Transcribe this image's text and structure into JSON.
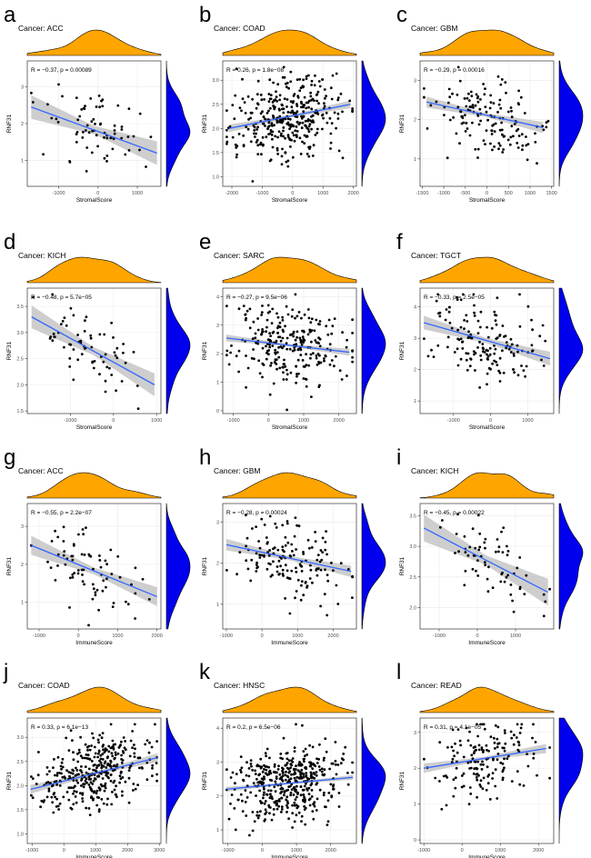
{
  "chart_data": [
    {
      "type": "scatter",
      "letter": "a",
      "title": "Cancer: ACC",
      "xlabel": "StromalScore",
      "ylabel": "RNF31",
      "annotation": "R = −0.37, p = 0.00089",
      "xlim": [
        -1800,
        1600
      ],
      "ylim": [
        0.3,
        3.7
      ],
      "xticks": [
        -1000,
        0,
        1000
      ],
      "xticklabels": [
        "-1000",
        "0",
        "1000"
      ],
      "yticks": [
        1,
        2,
        3
      ],
      "yticklabels": [
        "1",
        "2",
        "3"
      ],
      "fit": {
        "x": [
          -1700,
          1500
        ],
        "y": [
          2.45,
          1.2
        ],
        "ci": 0.32
      },
      "n_points": 72,
      "seed": 11
    },
    {
      "type": "scatter",
      "letter": "b",
      "title": "Cancer: COAD",
      "xlabel": "StromalScore",
      "ylabel": "RNF31",
      "annotation": "R = 0.26, p = 1.8e−08",
      "xlim": [
        -2300,
        2100
      ],
      "ylim": [
        0.8,
        3.4
      ],
      "xticks": [
        -2000,
        -1000,
        0,
        1000,
        2000
      ],
      "xticklabels": [
        "-2000",
        "-1000",
        "0",
        "1000",
        "2000"
      ],
      "yticks": [
        1.0,
        1.5,
        2.0,
        2.5,
        3.0
      ],
      "yticklabels": [
        "1.0",
        "1.5",
        "2.0",
        "2.5",
        "3.0"
      ],
      "fit": {
        "x": [
          -2100,
          1900
        ],
        "y": [
          2.0,
          2.5
        ],
        "ci": 0.08
      },
      "n_points": 360,
      "seed": 12
    },
    {
      "type": "scatter",
      "letter": "c",
      "title": "Cancer: GBM",
      "xlabel": "StromalScore",
      "ylabel": "RNF31",
      "annotation": "R = −0.29, p = 0.00016",
      "xlim": [
        -1550,
        1550
      ],
      "ylim": [
        0.3,
        3.5
      ],
      "xticks": [
        -1500,
        -1000,
        -500,
        0,
        500,
        1000,
        1500
      ],
      "xticklabels": [
        "-1500",
        "-1000",
        "-500",
        "0",
        "500",
        "1000",
        "1500"
      ],
      "yticks": [
        1,
        2,
        3
      ],
      "yticklabels": [
        "1",
        "2",
        "3"
      ],
      "fit": {
        "x": [
          -1400,
          1300
        ],
        "y": [
          2.45,
          1.8
        ],
        "ci": 0.14
      },
      "n_points": 150,
      "seed": 13
    },
    {
      "type": "scatter",
      "letter": "d",
      "title": "Cancer: KICH",
      "xlabel": "StromalScore",
      "ylabel": "RNF31",
      "annotation": "R = −0.48, p = 5.7e−05",
      "xlim": [
        -2000,
        1100
      ],
      "ylim": [
        1.45,
        3.85
      ],
      "xticks": [
        -1000,
        0,
        1000
      ],
      "xticklabels": [
        "-1000",
        "0",
        "1000"
      ],
      "yticks": [
        1.5,
        2.0,
        2.5,
        3.0,
        3.5
      ],
      "yticklabels": [
        "1.5",
        "2.0",
        "2.5",
        "3.0",
        "3.5"
      ],
      "fit": {
        "x": [
          -1900,
          950
        ],
        "y": [
          3.3,
          2.0
        ],
        "ci": 0.22
      },
      "n_points": 66,
      "seed": 14
    },
    {
      "type": "scatter",
      "letter": "e",
      "title": "Cancer: SARC",
      "xlabel": "StromalScore",
      "ylabel": "RNF31",
      "annotation": "R = −0.27, p = 9.5e−06",
      "xlim": [
        -1300,
        2500
      ],
      "ylim": [
        -0.1,
        4.3
      ],
      "xticks": [
        -1000,
        0,
        1000,
        2000
      ],
      "xticklabels": [
        "-1000",
        "0",
        "1000",
        "2000"
      ],
      "yticks": [
        0,
        1,
        2,
        3,
        4
      ],
      "yticklabels": [
        "0",
        "1",
        "2",
        "3",
        "4"
      ],
      "fit": {
        "x": [
          -1200,
          2300
        ],
        "y": [
          2.55,
          2.05
        ],
        "ci": 0.12
      },
      "n_points": 260,
      "seed": 15
    },
    {
      "type": "scatter",
      "letter": "f",
      "title": "Cancer: TGCT",
      "xlabel": "StromalScore",
      "ylabel": "RNF31",
      "annotation": "R = −0.33, p = 2.5e−05",
      "xlim": [
        -1900,
        1700
      ],
      "ylim": [
        0.6,
        4.6
      ],
      "xticks": [
        -1000,
        0,
        1000
      ],
      "xticklabels": [
        "-1000",
        "0",
        "1000"
      ],
      "yticks": [
        1,
        2,
        3,
        4
      ],
      "yticklabels": [
        "1",
        "2",
        "3",
        "4"
      ],
      "fit": {
        "x": [
          -1800,
          1600
        ],
        "y": [
          3.5,
          2.35
        ],
        "ci": 0.22
      },
      "n_points": 150,
      "seed": 16
    },
    {
      "type": "scatter",
      "letter": "g",
      "title": "Cancer: ACC",
      "xlabel": "ImmuneScore",
      "ylabel": "RNF31",
      "annotation": "R = −0.55, p = 2.2e−07",
      "xlim": [
        -1300,
        2100
      ],
      "ylim": [
        0.3,
        3.6
      ],
      "xticks": [
        -1000,
        0,
        1000,
        2000
      ],
      "xticklabels": [
        "-1000",
        "0",
        "1000",
        "2000"
      ],
      "yticks": [
        1,
        2,
        3
      ],
      "yticklabels": [
        "1",
        "2",
        "3"
      ],
      "fit": {
        "x": [
          -1200,
          2000
        ],
        "y": [
          2.5,
          1.15
        ],
        "ci": 0.25
      },
      "n_points": 74,
      "seed": 17
    },
    {
      "type": "scatter",
      "letter": "h",
      "title": "Cancer: GBM",
      "xlabel": "ImmuneScore",
      "ylabel": "RNF31",
      "annotation": "R = −0.28, p = 0.00024",
      "xlim": [
        -1100,
        2650
      ],
      "ylim": [
        0.4,
        3.45
      ],
      "xticks": [
        -1000,
        0,
        1000,
        2000
      ],
      "xticklabels": [
        "-1000",
        "0",
        "1000",
        "2000"
      ],
      "yticks": [
        1,
        2,
        3
      ],
      "yticklabels": [
        "1",
        "2",
        "3"
      ],
      "fit": {
        "x": [
          -1000,
          2500
        ],
        "y": [
          2.45,
          1.8
        ],
        "ci": 0.14
      },
      "n_points": 150,
      "seed": 18
    },
    {
      "type": "scatter",
      "letter": "i",
      "title": "Cancer: KICH",
      "xlabel": "ImmuneScore",
      "ylabel": "RNF31",
      "annotation": "R = −0.45, p = 0.00022",
      "xlim": [
        -1500,
        2000
      ],
      "ylim": [
        1.65,
        3.7
      ],
      "xticks": [
        -1000,
        0,
        1000
      ],
      "xticklabels": [
        "-1000",
        "0",
        "1000"
      ],
      "yticks": [
        2.0,
        2.5,
        3.0,
        3.5
      ],
      "yticklabels": [
        "2.0",
        "2.5",
        "3.0",
        "3.5"
      ],
      "fit": {
        "x": [
          -1400,
          1850
        ],
        "y": [
          3.3,
          2.25
        ],
        "ci": 0.22
      },
      "n_points": 66,
      "seed": 19
    },
    {
      "type": "scatter",
      "letter": "j",
      "title": "Cancer: COAD",
      "xlabel": "ImmuneScore",
      "ylabel": "RNF31",
      "annotation": "R = 0.33, p = 6.1e−13",
      "xlim": [
        -1150,
        3050
      ],
      "ylim": [
        0.8,
        3.4
      ],
      "xticks": [
        -1000,
        0,
        1000,
        2000,
        3000
      ],
      "xticklabels": [
        "-1000",
        "0",
        "1000",
        "2000",
        "3000"
      ],
      "yticks": [
        1.0,
        1.5,
        2.0,
        2.5,
        3.0
      ],
      "yticklabels": [
        "1.0",
        "1.5",
        "2.0",
        "2.5",
        "3.0"
      ],
      "fit": {
        "x": [
          -1050,
          2950
        ],
        "y": [
          1.92,
          2.58
        ],
        "ci": 0.09
      },
      "n_points": 370,
      "seed": 20
    },
    {
      "type": "scatter",
      "letter": "k",
      "title": "Cancer: HNSC",
      "xlabel": "ImmuneScore",
      "ylabel": "RNF31",
      "annotation": "R = 0.2, p = 6.5e−06",
      "xlim": [
        -1150,
        2750
      ],
      "ylim": [
        0.6,
        4.3
      ],
      "xticks": [
        -1000,
        0,
        1000,
        2000
      ],
      "xticklabels": [
        "-1000",
        "0",
        "1000",
        "2000"
      ],
      "yticks": [
        1,
        2,
        3,
        4
      ],
      "yticklabels": [
        "1",
        "2",
        "3",
        "4"
      ],
      "fit": {
        "x": [
          -1050,
          2650
        ],
        "y": [
          2.2,
          2.55
        ],
        "ci": 0.07
      },
      "n_points": 430,
      "seed": 21
    },
    {
      "type": "scatter",
      "letter": "l",
      "title": "Cancer: READ",
      "xlabel": "ImmuneScore",
      "ylabel": "RNF31",
      "annotation": "R = 0.31, p = 4.1e−05",
      "xlim": [
        -1100,
        2400
      ],
      "ylim": [
        -0.1,
        3.4
      ],
      "xticks": [
        -1000,
        0,
        1000,
        2000
      ],
      "xticklabels": [
        "-1000",
        "0",
        "1000",
        "2000"
      ],
      "yticks": [
        0,
        1,
        2,
        3
      ],
      "yticklabels": [
        "0",
        "1",
        "2",
        "3"
      ],
      "fit": {
        "x": [
          -1000,
          2200
        ],
        "y": [
          2.0,
          2.55
        ],
        "ci": 0.13
      },
      "n_points": 160,
      "seed": 22
    }
  ],
  "colors": {
    "top_density": "#FFA500",
    "right_density": "#0000EE",
    "fit_line": "#3366FF",
    "ci_band": "#BEBEBE",
    "points": "#000000"
  }
}
